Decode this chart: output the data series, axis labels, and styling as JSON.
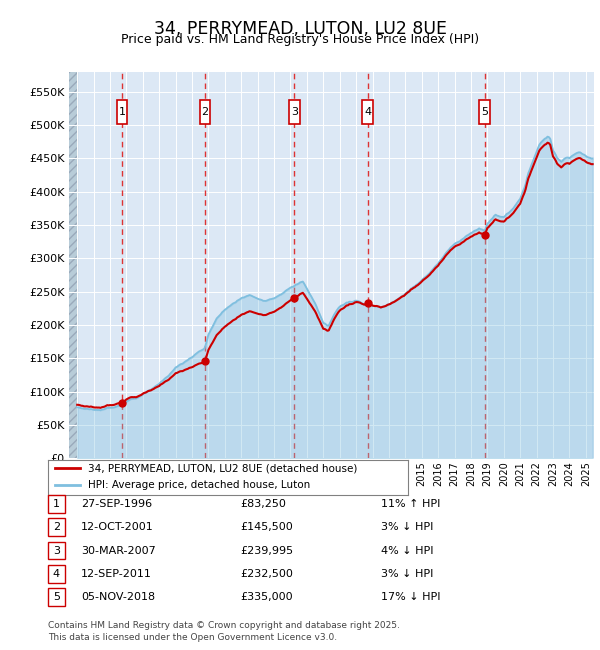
{
  "title": "34, PERRYMEAD, LUTON, LU2 8UE",
  "subtitle": "Price paid vs. HM Land Registry's House Price Index (HPI)",
  "transactions": [
    {
      "num": 1,
      "date": "27-SEP-1996",
      "price": 83250,
      "year": 1996.74,
      "hpi_pct": "11% ↑ HPI"
    },
    {
      "num": 2,
      "date": "12-OCT-2001",
      "price": 145500,
      "year": 2001.78,
      "hpi_pct": "3% ↓ HPI"
    },
    {
      "num": 3,
      "date": "30-MAR-2007",
      "price": 239995,
      "year": 2007.24,
      "hpi_pct": "4% ↓ HPI"
    },
    {
      "num": 4,
      "date": "12-SEP-2011",
      "price": 232500,
      "year": 2011.7,
      "hpi_pct": "3% ↓ HPI"
    },
    {
      "num": 5,
      "date": "05-NOV-2018",
      "price": 335000,
      "year": 2018.84,
      "hpi_pct": "17% ↓ HPI"
    }
  ],
  "ylim": [
    0,
    580000
  ],
  "yticks": [
    0,
    50000,
    100000,
    150000,
    200000,
    250000,
    300000,
    350000,
    400000,
    450000,
    500000,
    550000
  ],
  "xlim": [
    1993.5,
    2025.5
  ],
  "hpi_color": "#7fbfdf",
  "price_color": "#cc0000",
  "bg_color": "#dce8f5",
  "hatch_color": "#b8c8d8",
  "legend_label_price": "34, PERRYMEAD, LUTON, LU2 8UE (detached house)",
  "legend_label_hpi": "HPI: Average price, detached house, Luton",
  "footer": "Contains HM Land Registry data © Crown copyright and database right 2025.\nThis data is licensed under the Open Government Licence v3.0."
}
